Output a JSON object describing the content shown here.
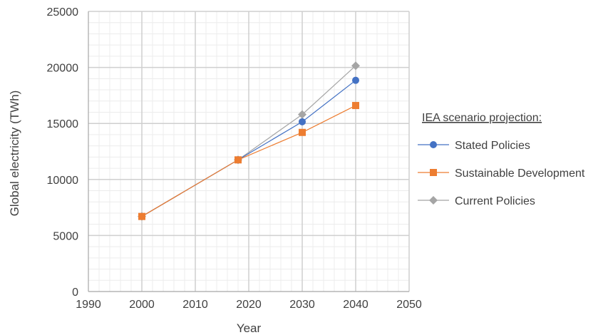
{
  "chart_data": {
    "type": "line",
    "xlabel": "Year",
    "ylabel": "Global electricity (TWh)",
    "xlim": [
      1990,
      2050
    ],
    "ylim": [
      0,
      25000
    ],
    "x_ticks": [
      "1990",
      "2000",
      "2010",
      "2020",
      "2030",
      "2040",
      "2050"
    ],
    "y_ticks": [
      "0",
      "5000",
      "10000",
      "15000",
      "20000",
      "25000"
    ],
    "grid": true,
    "legend_title": "IEA scenario projection:",
    "legend_position": "right",
    "series": [
      {
        "name": "Stated Policies",
        "color": "#4472C4",
        "marker": "circle",
        "x": [
          2000,
          2018,
          2030,
          2040
        ],
        "y": [
          6700,
          11750,
          15150,
          18850
        ]
      },
      {
        "name": "Sustainable Development",
        "color": "#ED7D31",
        "marker": "square",
        "x": [
          2000,
          2018,
          2030,
          2040
        ],
        "y": [
          6700,
          11750,
          14200,
          16600
        ]
      },
      {
        "name": "Current Policies",
        "color": "#A5A5A5",
        "marker": "diamond",
        "x": [
          2000,
          2018,
          2030,
          2040
        ],
        "y": [
          6700,
          11750,
          15800,
          20150
        ]
      }
    ]
  }
}
